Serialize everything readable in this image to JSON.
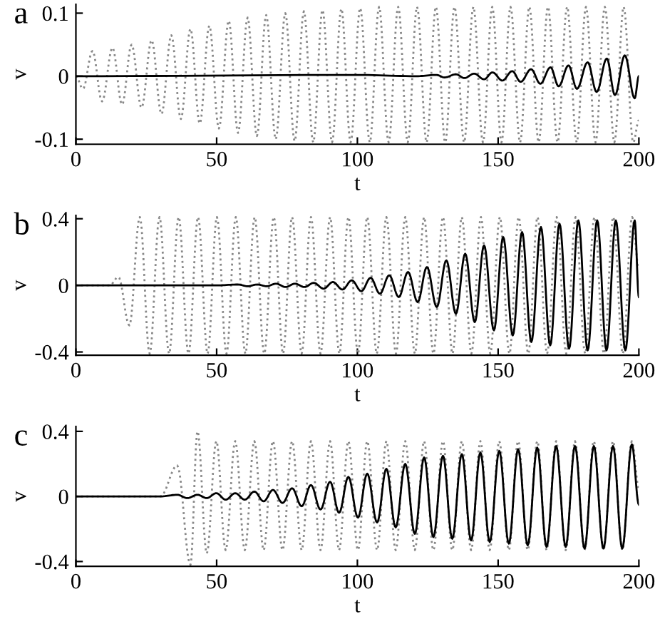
{
  "chart_data": [
    {
      "type": "line",
      "title": "a",
      "xlabel": "t",
      "ylabel": "v",
      "xlim": [
        0,
        200
      ],
      "xticks": [
        0,
        50,
        100,
        150,
        200
      ],
      "ylim": [
        -0.108,
        0.114
      ],
      "yticks": [
        -0.1,
        0,
        0.1
      ],
      "grid": false,
      "series": [
        {
          "color": "#888888",
          "line_style": "dotted",
          "x": [
            0,
            2.5,
            5.9,
            9.3,
            13,
            16.4,
            19.8,
            23.3,
            26.9,
            30.4,
            33.9,
            37.3,
            40.7,
            44,
            47.4,
            50.8,
            54.3,
            57.6,
            61,
            64.3,
            67.6,
            71,
            74.4,
            77.7,
            81,
            84.3,
            87.6,
            91,
            94.3,
            97.6,
            101,
            104.4,
            107.7,
            111.1,
            114.5,
            117.9,
            121.2,
            124.6,
            127.9,
            131.2,
            134.5,
            137.9,
            141.2,
            144.6,
            147.9,
            151.2,
            154.4,
            157.8,
            161.1,
            164.4,
            167.7,
            171.1,
            174.5,
            177.9,
            181.2,
            184.6,
            187.9,
            191.3,
            194.6,
            198,
            200
          ],
          "values": [
            0,
            -0.02,
            0.04,
            -0.04,
            0.045,
            -0.045,
            0.05,
            -0.05,
            0.057,
            -0.06,
            0.065,
            -0.068,
            0.075,
            -0.075,
            0.08,
            -0.083,
            0.088,
            -0.09,
            0.093,
            -0.095,
            0.097,
            -0.1,
            0.1,
            -0.103,
            0.103,
            -0.105,
            0.105,
            -0.105,
            0.107,
            -0.105,
            0.108,
            -0.105,
            0.11,
            -0.105,
            0.11,
            -0.105,
            0.11,
            -0.105,
            0.11,
            -0.105,
            0.11,
            -0.105,
            0.11,
            -0.105,
            0.11,
            -0.105,
            0.11,
            -0.105,
            0.11,
            -0.105,
            0.11,
            -0.105,
            0.11,
            -0.105,
            0.11,
            -0.105,
            0.11,
            -0.105,
            0.11,
            -0.105,
            -0.07
          ]
        },
        {
          "color": "#000000",
          "line_style": "solid",
          "x": [
            0,
            100,
            121,
            128,
            131,
            135,
            138,
            141.5,
            145,
            148,
            151.5,
            155,
            158,
            161.7,
            165,
            168.6,
            171.5,
            175,
            178,
            181.8,
            185,
            188.6,
            191.5,
            195,
            198.5,
            200
          ],
          "values": [
            0,
            0.002,
            0,
            0.002,
            -0.002,
            0.003,
            -0.003,
            0.004,
            -0.005,
            0.006,
            -0.007,
            0.008,
            -0.009,
            0.011,
            -0.012,
            0.014,
            -0.016,
            0.017,
            -0.02,
            0.022,
            -0.025,
            0.028,
            -0.03,
            0.033,
            -0.035,
            0
          ]
        }
      ]
    },
    {
      "type": "line",
      "title": "b",
      "xlabel": "t",
      "ylabel": "v",
      "xlim": [
        0,
        200
      ],
      "xticks": [
        0,
        50,
        100,
        150,
        200
      ],
      "ylim": [
        -0.42,
        0.42
      ],
      "yticks": [
        -0.4,
        0,
        0.4
      ],
      "grid": false,
      "series": [
        {
          "color": "#888888",
          "line_style": "dotted",
          "x": [
            0,
            12,
            15.1,
            19,
            22.7,
            26.2,
            29.7,
            33.1,
            36.5,
            40,
            43.4,
            46.8,
            50.1,
            53.5,
            56.8,
            60.2,
            63.5,
            66.9,
            70.3,
            73.6,
            76.8,
            80.2,
            83.5,
            86.9,
            90.3,
            93.6,
            96.8,
            100.2,
            103.5,
            106.9,
            110.3,
            113.7,
            117,
            120.4,
            123.7,
            127,
            130.4,
            133.8,
            137.1,
            140.5,
            143.9,
            147.2,
            150.6,
            154,
            157.3,
            160.7,
            164,
            167.4,
            170.8,
            174.2,
            177.5,
            180.9,
            184.2,
            187.6,
            190.9,
            194.3,
            197.6,
            200
          ],
          "values": [
            0,
            0,
            0.05,
            -0.24,
            0.41,
            -0.41,
            0.41,
            -0.41,
            0.41,
            -0.41,
            0.41,
            -0.41,
            0.41,
            -0.41,
            0.41,
            -0.41,
            0.41,
            -0.41,
            0.41,
            -0.41,
            0.41,
            -0.41,
            0.41,
            -0.41,
            0.41,
            -0.41,
            0.41,
            -0.41,
            0.41,
            -0.41,
            0.41,
            -0.41,
            0.41,
            -0.41,
            0.41,
            -0.41,
            0.41,
            -0.41,
            0.41,
            -0.41,
            0.41,
            -0.41,
            0.41,
            -0.41,
            0.41,
            -0.41,
            0.41,
            -0.41,
            0.41,
            -0.41,
            0.41,
            -0.41,
            0.41,
            -0.41,
            0.41,
            -0.41,
            0.41,
            0.1
          ]
        },
        {
          "color": "#000000",
          "line_style": "solid",
          "x": [
            0,
            50,
            57.6,
            61,
            64.4,
            67.8,
            71.1,
            74.5,
            77.8,
            81.2,
            84.5,
            88,
            91.3,
            94.7,
            98,
            101.4,
            104.7,
            108,
            111.3,
            114.7,
            118,
            121.4,
            124.7,
            128.2,
            131.6,
            135,
            138.3,
            141.7,
            145,
            148.5,
            151.8,
            155.2,
            158.5,
            161.8,
            165.2,
            168.5,
            171.8,
            175.2,
            178.5,
            181.8,
            185.2,
            188.5,
            191.8,
            195.2,
            198.5,
            200
          ],
          "values": [
            0,
            0,
            0.005,
            -0.005,
            0.005,
            -0.005,
            0.01,
            -0.01,
            0.01,
            -0.01,
            0.015,
            -0.02,
            0.02,
            -0.025,
            0.03,
            -0.035,
            0.045,
            -0.05,
            0.06,
            -0.07,
            0.08,
            -0.1,
            0.11,
            -0.13,
            0.15,
            -0.17,
            0.19,
            -0.22,
            0.24,
            -0.27,
            0.29,
            -0.3,
            0.32,
            -0.34,
            0.35,
            -0.36,
            0.37,
            -0.38,
            0.39,
            -0.39,
            0.39,
            -0.39,
            0.39,
            -0.39,
            0.39,
            -0.07
          ]
        }
      ]
    },
    {
      "type": "line",
      "title": "c",
      "xlabel": "t",
      "ylabel": "v",
      "xlim": [
        0,
        200
      ],
      "xticks": [
        0,
        50,
        100,
        150,
        200
      ],
      "ylim": [
        -0.43,
        0.43
      ],
      "yticks": [
        -0.4,
        0,
        0.4
      ],
      "grid": false,
      "series": [
        {
          "color": "#888888",
          "line_style": "dotted",
          "x": [
            0,
            30,
            36,
            40.7,
            43.2,
            46.5,
            49.9,
            53.2,
            56.6,
            60,
            63.4,
            66.7,
            70,
            73.4,
            76.8,
            80.2,
            83.5,
            86.9,
            90.3,
            93.5,
            96.8,
            100.2,
            103.5,
            107,
            110.3,
            113.6,
            117,
            120.4,
            123.7,
            127,
            130.4,
            133.7,
            137.1,
            140.4,
            143.7,
            147,
            150.4,
            153.8,
            157.1,
            160.5,
            163.9,
            167.2,
            170.6,
            174,
            177.3,
            180.7,
            184,
            187.4,
            190.8,
            194.1,
            197.5,
            200
          ],
          "values": [
            0,
            0,
            0.19,
            -0.42,
            0.4,
            -0.35,
            0.34,
            -0.33,
            0.34,
            -0.33,
            0.34,
            -0.33,
            0.34,
            -0.33,
            0.34,
            -0.33,
            0.34,
            -0.33,
            0.34,
            -0.33,
            0.34,
            -0.33,
            0.34,
            -0.33,
            0.34,
            -0.33,
            0.34,
            -0.33,
            0.34,
            -0.33,
            0.34,
            -0.33,
            0.34,
            -0.33,
            0.34,
            -0.33,
            0.34,
            -0.33,
            0.34,
            -0.33,
            0.34,
            -0.33,
            0.34,
            -0.33,
            0.34,
            -0.33,
            0.34,
            -0.33,
            0.34,
            -0.33,
            0.34,
            0.05
          ]
        },
        {
          "color": "#000000",
          "line_style": "solid",
          "x": [
            0,
            30,
            36,
            39.6,
            43.2,
            46.5,
            49.9,
            53.2,
            56.6,
            60,
            63.4,
            66.7,
            70,
            73.4,
            76.8,
            80.2,
            83.5,
            86.9,
            90.3,
            93.5,
            96.8,
            100.2,
            103.5,
            107,
            110.3,
            113.6,
            117,
            120.4,
            123.7,
            127,
            130.4,
            133.7,
            137.1,
            140.4,
            143.7,
            147,
            150.4,
            153.8,
            157.1,
            160.5,
            163.9,
            167.2,
            170.6,
            174,
            177.3,
            180.7,
            184,
            187.4,
            190.8,
            194.1,
            197.5,
            200
          ],
          "values": [
            0,
            0,
            0.01,
            -0.01,
            0.01,
            -0.01,
            0.02,
            -0.02,
            0.02,
            -0.02,
            0.03,
            -0.03,
            0.04,
            -0.04,
            0.05,
            -0.06,
            0.07,
            -0.08,
            0.09,
            -0.1,
            0.12,
            -0.13,
            0.14,
            -0.16,
            0.17,
            -0.19,
            0.2,
            -0.23,
            0.24,
            -0.25,
            0.25,
            -0.26,
            0.26,
            -0.27,
            0.27,
            -0.28,
            0.28,
            -0.29,
            0.29,
            -0.3,
            0.3,
            -0.31,
            0.31,
            -0.31,
            0.31,
            -0.32,
            0.31,
            -0.32,
            0.31,
            -0.32,
            0.32,
            -0.05
          ]
        }
      ]
    }
  ]
}
